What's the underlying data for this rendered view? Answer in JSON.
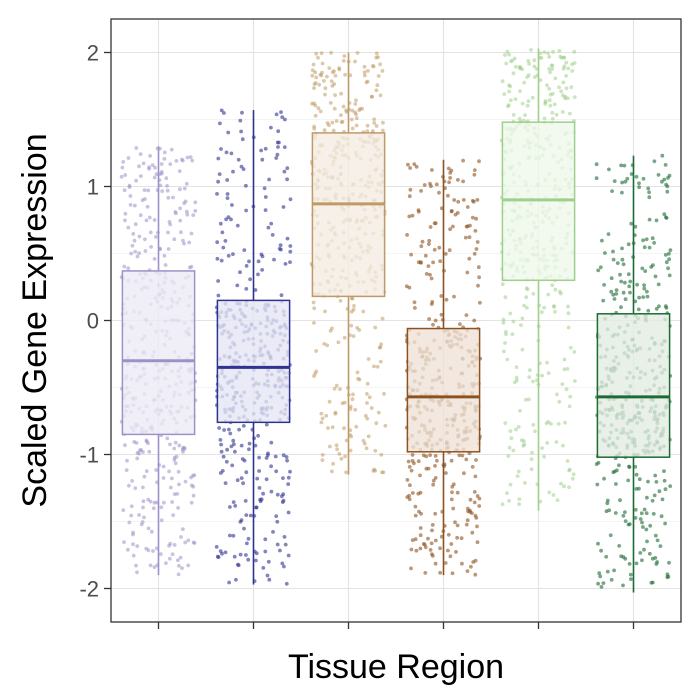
{
  "chart_data": {
    "type": "box",
    "xlabel": "Tissue Region",
    "ylabel": "Scaled Gene Expression",
    "ylim": [
      -2.25,
      2.25
    ],
    "yticks": [
      -2,
      -1,
      0,
      1,
      2
    ],
    "grid": true,
    "legend": "none",
    "overlay": "jittered points",
    "series": [
      {
        "color": "#9e90c8",
        "jitter_alpha": 0.55,
        "box_fill": "#eceaf5",
        "min": -1.9,
        "q1": -0.85,
        "median": -0.3,
        "q3": 0.37,
        "max": 1.3
      },
      {
        "color": "#2f3390",
        "jitter_alpha": 0.6,
        "box_fill": "#e4e5f3",
        "min": -1.97,
        "q1": -0.76,
        "median": -0.35,
        "q3": 0.15,
        "max": 1.57
      },
      {
        "color": "#bf9a66",
        "jitter_alpha": 0.55,
        "box_fill": "#f4ece2",
        "min": -1.15,
        "q1": 0.18,
        "median": 0.87,
        "q3": 1.4,
        "max": 2.0
      },
      {
        "color": "#8c5320",
        "jitter_alpha": 0.6,
        "box_fill": "#eee2d6",
        "min": -1.9,
        "q1": -0.98,
        "median": -0.57,
        "q3": -0.06,
        "max": 1.2
      },
      {
        "color": "#9ed08c",
        "jitter_alpha": 0.55,
        "box_fill": "#eef7ea",
        "min": -1.42,
        "q1": 0.3,
        "median": 0.9,
        "q3": 1.48,
        "max": 2.03
      },
      {
        "color": "#1d6b34",
        "jitter_alpha": 0.6,
        "box_fill": "#e1ece2",
        "min": -2.03,
        "q1": -1.02,
        "median": -0.57,
        "q3": 0.05,
        "max": 1.23
      }
    ]
  }
}
